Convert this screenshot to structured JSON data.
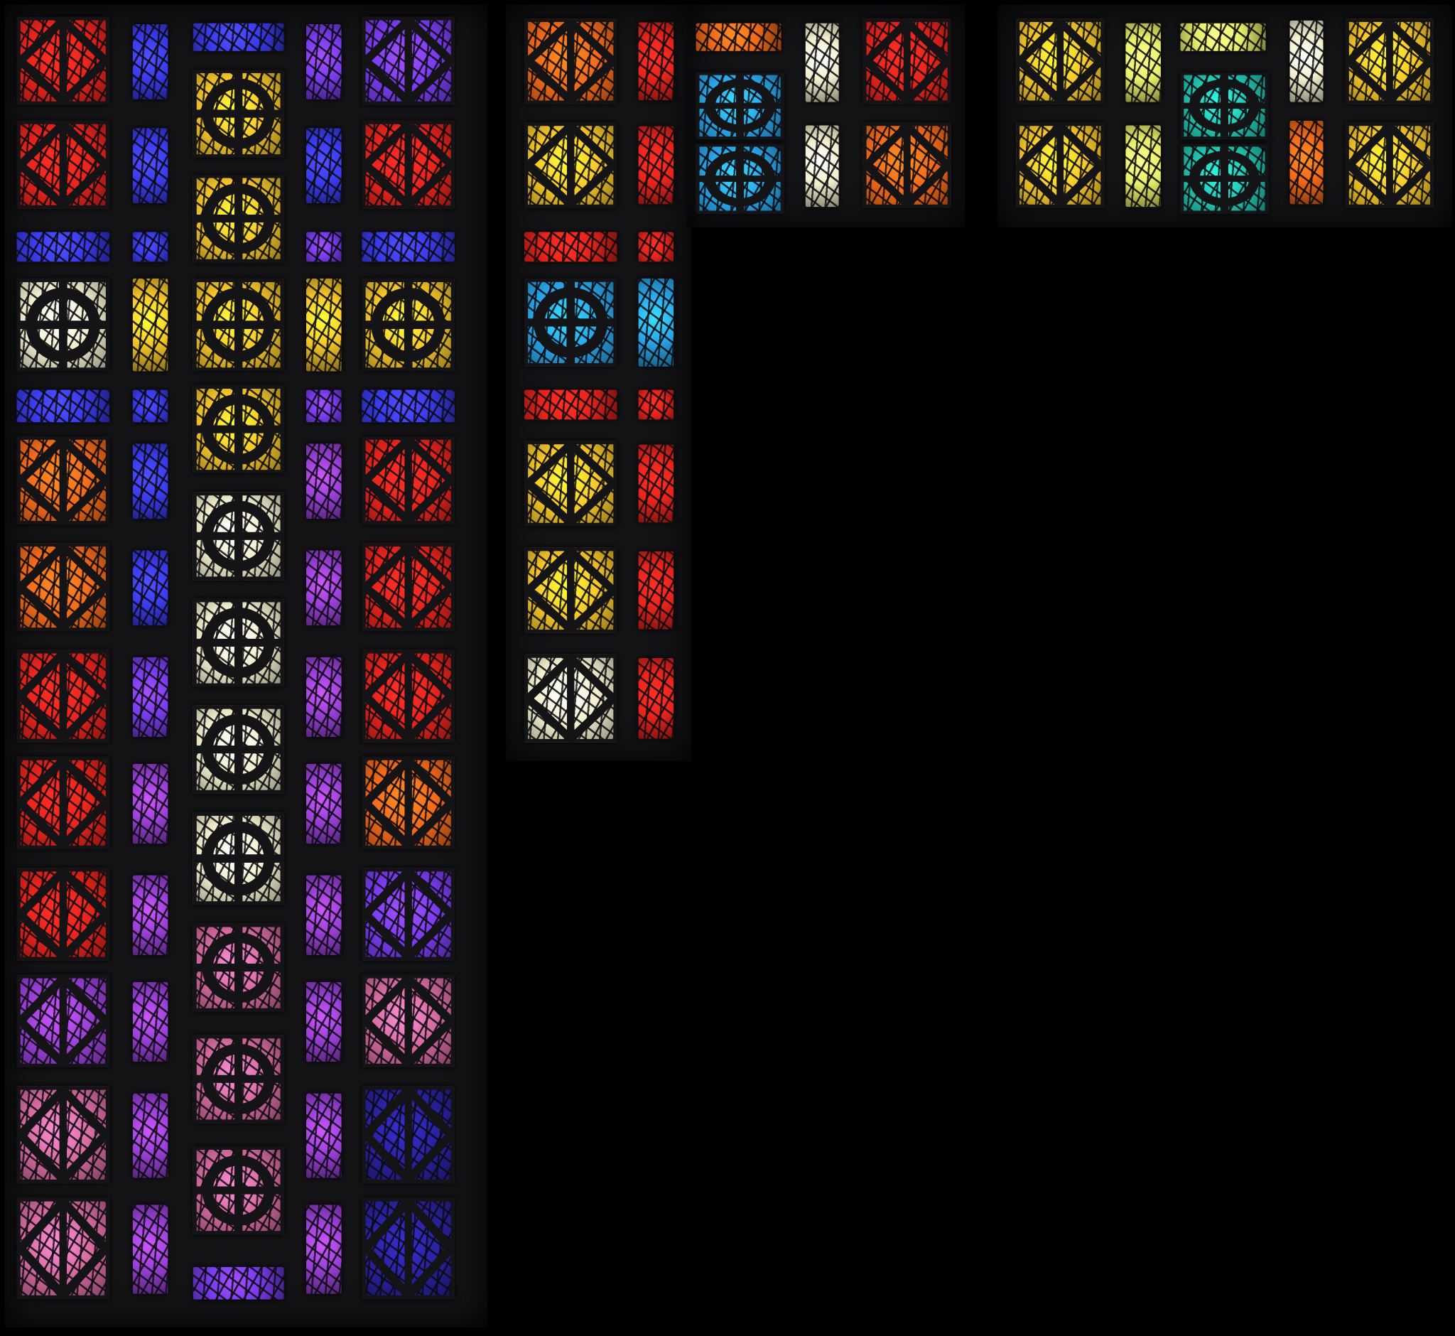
{
  "scene": {
    "subject": "stained-glass-window-concrete-lattice",
    "background_color": "#000000",
    "frame_color": "#141417",
    "palette": {
      "red": "#e8241c",
      "orange": "#f26a1a",
      "yellow": "#f5c62a",
      "pale": "#f2eecd",
      "blue": "#3b3cf0",
      "violet": "#7a3cf0",
      "purple": "#9a40d8",
      "pink": "#d46aa0",
      "cyan": "#2aa6ea",
      "teal": "#22c4b0",
      "lime": "#e8ef6a",
      "darkblue": "#2a22a0"
    },
    "left_panel": {
      "col_a": [
        "red",
        "red",
        "blue",
        "pale",
        "blue",
        "orange",
        "orange",
        "red",
        "red",
        "red",
        "purple",
        "pink",
        "pink"
      ],
      "col_b": [
        "blue",
        "blue",
        "blue",
        "yellow",
        "blue",
        "blue",
        "blue",
        "violet",
        "purple",
        "purple",
        "purple",
        "purple",
        "purple"
      ],
      "col_c": [
        "blue",
        "yellow",
        "yellow",
        "yellow",
        "yellow",
        "pale",
        "pale",
        "pale",
        "pale",
        "pink",
        "pink",
        "pink",
        "violet"
      ],
      "col_d": [
        "violet",
        "blue",
        "violet",
        "yellow",
        "violet",
        "purple",
        "purple",
        "purple",
        "purple",
        "purple",
        "purple",
        "purple",
        "purple"
      ],
      "col_e": [
        "violet",
        "red",
        "blue",
        "yellow",
        "blue",
        "red",
        "red",
        "red",
        "orange",
        "violet",
        "pink",
        "darkblue",
        "darkblue"
      ]
    },
    "middle_panel": {
      "col_a": [
        "orange",
        "yellow",
        "red",
        "cyan",
        "red",
        "yellow",
        "yellow",
        "pale"
      ],
      "col_b": [
        "red",
        "red",
        "red",
        "cyan",
        "red",
        "red",
        "red",
        "red"
      ]
    },
    "top_strip": {
      "bar_a": "orange",
      "circles_a": "cyan",
      "narrow_a": "pale",
      "diamond_a": [
        "red",
        "orange"
      ],
      "diamond_b": [
        "yellow",
        "yellow"
      ],
      "narrow_b": "lime",
      "bar_b": "lime",
      "circles_b": "teal",
      "narrow_c": [
        "pale",
        "orange"
      ],
      "diamond_c": [
        "yellow",
        "yellow"
      ]
    }
  }
}
